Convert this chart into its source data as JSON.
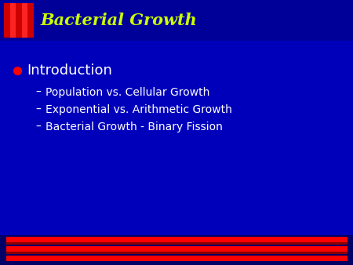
{
  "bg_color": "#0000BB",
  "header_bg": "#000099",
  "title": "Bacterial Growth",
  "title_color": "#CCFF00",
  "title_fontsize": 15,
  "bullet_color": "#FF0000",
  "bullet_text": "Introduction",
  "bullet_fontsize": 13,
  "bullet_text_color": "#FFFFFF",
  "sub_items": [
    "Population vs. Cellular Growth",
    "Exponential vs. Arithmetic Growth",
    "Bacterial Growth - Binary Fission"
  ],
  "sub_fontsize": 10,
  "sub_text_color": "#FFFFFF",
  "stripe_colors": [
    "#CC0000",
    "#FF2222",
    "#CC0000",
    "#FF2222",
    "#CC0000"
  ],
  "red_stripe_color": "#FF0000",
  "bottom_bg": "#000066"
}
